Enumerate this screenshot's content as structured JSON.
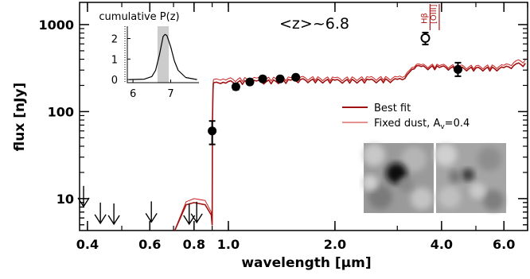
{
  "chart_data": {
    "type": "scatter",
    "annotation": "<z>~6.8",
    "xlabel": "wavelength [μm]",
    "ylabel": "flux [nJy]",
    "x_scale": "log",
    "y_scale": "log",
    "xlim": [
      0.38,
      7.0
    ],
    "ylim": [
      4.3,
      1800
    ],
    "x_ticks": [
      0.4,
      0.6,
      0.8,
      1.0,
      2.0,
      4.0,
      6.0
    ],
    "x_tick_labels": [
      "0.4",
      "0.6",
      "0.8",
      "1.0",
      "2.0",
      "4.0",
      "6.0"
    ],
    "y_ticks": [
      10,
      100,
      1000
    ],
    "y_tick_labels": [
      "10",
      "100",
      "1000"
    ],
    "legend": {
      "position": "right",
      "entries": [
        {
          "label": "Best fit",
          "color": "#a01010"
        },
        {
          "label": "Fixed dust, A",
          "subscript": "v",
          "suffix": "=0.4",
          "color": "#cc2020"
        }
      ]
    },
    "detections": [
      {
        "x": 0.9,
        "y": 60,
        "yerr_lo": 18,
        "yerr_hi": 18
      },
      {
        "x": 1.05,
        "y": 193,
        "yerr_lo": 14,
        "yerr_hi": 14
      },
      {
        "x": 1.15,
        "y": 219,
        "yerr_lo": 14,
        "yerr_hi": 14
      },
      {
        "x": 1.25,
        "y": 238,
        "yerr_lo": 14,
        "yerr_hi": 14
      },
      {
        "x": 1.4,
        "y": 238,
        "yerr_lo": 14,
        "yerr_hi": 14
      },
      {
        "x": 1.55,
        "y": 248,
        "yerr_lo": 14,
        "yerr_hi": 14
      },
      {
        "x": 4.45,
        "y": 305,
        "yerr_lo": 50,
        "yerr_hi": 60
      }
    ],
    "open_points": [
      {
        "x": 3.6,
        "y": 700,
        "yerr_lo": 110,
        "yerr_hi": 110
      }
    ],
    "upper_limits": [
      {
        "x": 0.39,
        "y": 14
      },
      {
        "x": 0.435,
        "y": 9.0
      },
      {
        "x": 0.475,
        "y": 8.8
      },
      {
        "x": 0.606,
        "y": 9.3
      },
      {
        "x": 0.775,
        "y": 8.8
      },
      {
        "x": 0.814,
        "y": 9.2
      }
    ],
    "model_best_fit": {
      "name": "Best fit",
      "x": [
        0.38,
        0.5,
        0.6,
        0.7,
        0.76,
        0.8,
        0.86,
        0.895,
        0.9,
        0.902,
        0.905,
        0.907,
        0.91,
        0.925,
        0.95,
        1.0,
        1.2,
        1.5,
        1.6,
        2.0,
        2.5,
        3.0,
        3.15,
        3.25,
        3.4,
        3.5,
        4.0,
        4.5,
        5.0,
        6.0,
        6.5,
        6.9
      ],
      "y": [
        4.0,
        4.0,
        4.0,
        4.0,
        8.5,
        9.0,
        8.5,
        6.5,
        5.0,
        80,
        180,
        210,
        215,
        218,
        210,
        222,
        225,
        230,
        235,
        230,
        232,
        235,
        240,
        285,
        335,
        330,
        330,
        320,
        318,
        320,
        355,
        360
      ]
    },
    "model_fixed_dust": {
      "name": "Fixed dust, Av=0.4",
      "x": [
        0.38,
        0.5,
        0.6,
        0.7,
        0.76,
        0.8,
        0.86,
        0.895,
        0.9,
        0.902,
        0.905,
        0.907,
        0.91,
        0.925,
        0.95,
        1.0,
        1.2,
        1.5,
        1.6,
        2.0,
        2.5,
        3.0,
        3.15,
        3.25,
        3.4,
        3.5,
        4.0,
        4.5,
        5.0,
        6.0,
        6.5,
        6.9
      ],
      "y": [
        4.0,
        4.0,
        4.0,
        4.0,
        9.2,
        10.0,
        9.5,
        7.0,
        5.2,
        90,
        195,
        228,
        235,
        238,
        230,
        240,
        243,
        246,
        250,
        245,
        248,
        250,
        255,
        300,
        350,
        345,
        345,
        338,
        335,
        340,
        385,
        395
      ]
    },
    "emission_lines": [
      {
        "label": "Hβ",
        "x": 3.75
      },
      {
        "label": "[OIII]",
        "x": 3.9
      }
    ],
    "inset": {
      "title": "cumulative P(z)",
      "x_ticks": [
        6,
        7
      ],
      "x_tick_labels": [
        "6",
        "7"
      ],
      "y_ticks": [
        0,
        1,
        2
      ],
      "y_tick_labels": [
        "0",
        "1",
        "2"
      ],
      "xlim": [
        5.85,
        7.75
      ],
      "ylim": [
        -0.15,
        2.6
      ],
      "shaded_range": [
        6.65,
        6.95
      ],
      "pz_x": [
        5.9,
        6.3,
        6.5,
        6.6,
        6.7,
        6.8,
        6.85,
        6.9,
        7.0,
        7.1,
        7.2,
        7.4,
        7.7
      ],
      "pz_y": [
        0.0,
        0.02,
        0.15,
        0.45,
        1.2,
        2.1,
        2.2,
        2.15,
        1.6,
        0.9,
        0.45,
        0.1,
        0.0
      ]
    },
    "stamps": 2
  }
}
